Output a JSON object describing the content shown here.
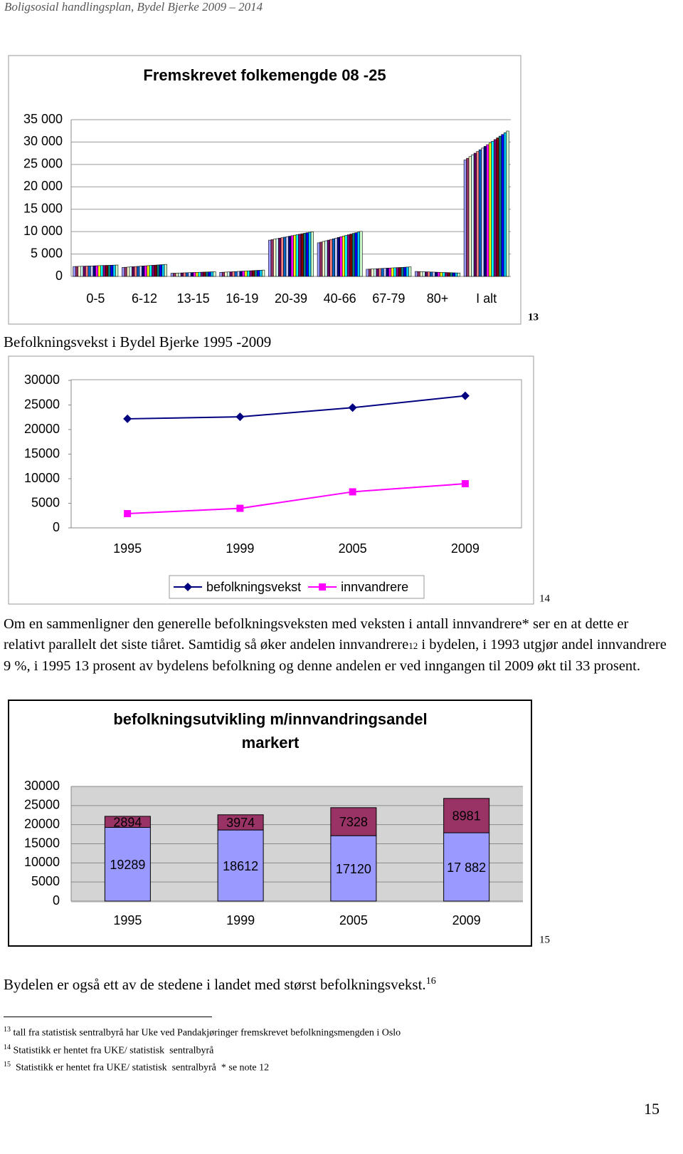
{
  "header": "Boligsosial handlingsplan, Bydel Bjerke 2009 – 2014",
  "chart_data": [
    {
      "type": "bar",
      "title": "Fremskrevet folkemengde 08 -25",
      "categories": [
        "0-5",
        "6-12",
        "13-15",
        "16-19",
        "20-39",
        "40-66",
        "67-79",
        "80+",
        "I alt"
      ],
      "series": [
        {
          "color": "#9999ff",
          "values": [
            2200,
            2000,
            700,
            900,
            8100,
            7500,
            1600,
            1100,
            26000
          ]
        },
        {
          "color": "#993366",
          "values": [
            2220,
            2040,
            720,
            930,
            8210,
            7650,
            1630,
            1080,
            26380
          ]
        },
        {
          "color": "#ffffcc",
          "values": [
            2240,
            2080,
            740,
            960,
            8320,
            7800,
            1660,
            1060,
            26760
          ]
        },
        {
          "color": "#ccffff",
          "values": [
            2260,
            2120,
            760,
            990,
            8430,
            7950,
            1690,
            1040,
            27140
          ]
        },
        {
          "color": "#660066",
          "values": [
            2280,
            2160,
            780,
            1020,
            8540,
            8100,
            1720,
            1020,
            27520
          ]
        },
        {
          "color": "#ff8080",
          "values": [
            2300,
            2200,
            800,
            1050,
            8650,
            8250,
            1750,
            1000,
            27900
          ]
        },
        {
          "color": "#0066cc",
          "values": [
            2320,
            2240,
            820,
            1080,
            8760,
            8400,
            1780,
            980,
            28280
          ]
        },
        {
          "color": "#ccccff",
          "values": [
            2340,
            2280,
            840,
            1110,
            8870,
            8550,
            1810,
            960,
            28660
          ]
        },
        {
          "color": "#000080",
          "values": [
            2360,
            2320,
            860,
            1140,
            8980,
            8700,
            1840,
            940,
            29040
          ]
        },
        {
          "color": "#ff00ff",
          "values": [
            2380,
            2360,
            880,
            1170,
            9090,
            8850,
            1870,
            920,
            29420
          ]
        },
        {
          "color": "#ffff00",
          "values": [
            2400,
            2400,
            900,
            1200,
            9200,
            9000,
            1900,
            900,
            29800
          ]
        },
        {
          "color": "#00ffff",
          "values": [
            2420,
            2440,
            920,
            1230,
            9310,
            9150,
            1930,
            880,
            30180
          ]
        },
        {
          "color": "#800080",
          "values": [
            2440,
            2480,
            940,
            1260,
            9420,
            9300,
            1960,
            860,
            30560
          ]
        },
        {
          "color": "#800000",
          "values": [
            2460,
            2520,
            960,
            1290,
            9530,
            9450,
            1990,
            840,
            30940
          ]
        },
        {
          "color": "#008080",
          "values": [
            2480,
            2560,
            980,
            1320,
            9640,
            9600,
            2020,
            820,
            31320
          ]
        },
        {
          "color": "#0000ff",
          "values": [
            2500,
            2600,
            1000,
            1350,
            9750,
            9750,
            2050,
            800,
            31700
          ]
        },
        {
          "color": "#00ccff",
          "values": [
            2520,
            2640,
            1020,
            1380,
            9860,
            9900,
            2080,
            780,
            32080
          ]
        },
        {
          "color": "#ccffcc",
          "values": [
            2540,
            2680,
            1040,
            1410,
            9970,
            10050,
            2110,
            760,
            32460
          ]
        }
      ],
      "ylim": [
        0,
        35000
      ],
      "yticks": [
        0,
        {
          "value": 5000,
          "label": "5 000"
        },
        {
          "value": 10000,
          "label": "10 000"
        },
        {
          "value": 15000,
          "label": "15 000"
        },
        {
          "value": 20000,
          "label": "20 000"
        },
        {
          "value": 25000,
          "label": "25 000"
        },
        {
          "value": 30000,
          "label": "30 000"
        },
        {
          "value": 35000,
          "label": "35 000"
        }
      ],
      "grid": true,
      "note": "13"
    },
    {
      "type": "line",
      "title": "Befolkningsvekst i Bydel Bjerke 1995 -2009",
      "categories": [
        "1995",
        "1999",
        "2005",
        "2009"
      ],
      "series": [
        {
          "name": "befolkningsvekst",
          "color": "#000080",
          "marker": "diamond",
          "values": [
            22183,
            22586,
            24448,
            26863
          ]
        },
        {
          "name": "innvandrere",
          "color": "#ff00ff",
          "marker": "square",
          "values": [
            2894,
            3974,
            7328,
            8981
          ]
        }
      ],
      "ylim": [
        0,
        30000
      ],
      "yticks": [
        0,
        5000,
        10000,
        15000,
        20000,
        25000,
        30000
      ],
      "grid": false,
      "legend": "bottom",
      "note": "14"
    },
    {
      "type": "bar",
      "stacked": true,
      "title": "befolkningsutvikling m/innvandringsandel markert",
      "categories": [
        "1995",
        "1999",
        "2005",
        "2009"
      ],
      "series": [
        {
          "color": "#9999ff",
          "values": [
            19289,
            18612,
            17120,
            17882
          ],
          "value_labels": [
            "19289",
            "18612",
            "17120",
            "17 882"
          ]
        },
        {
          "color": "#993366",
          "values": [
            2894,
            3974,
            7328,
            8981
          ]
        }
      ],
      "ylim": [
        0,
        30000
      ],
      "yticks": [
        0,
        5000,
        10000,
        15000,
        20000,
        25000,
        30000
      ],
      "grid": true,
      "note": "15"
    }
  ],
  "text": {
    "paragraph": {
      "before": "Om en sammenligner den generelle befolkningsveksten med veksten i antall innvandrere* ser en at dette er relativt parallelt det siste tiåret. Samtidig så øker andelen innvandrere",
      "ref": "12",
      "after": " i bydelen, i 1993 utgjør andel innvandrere 9 %, i 1995 13 prosent av bydelens befolkning og denne andelen er ved inngangen til 2009 økt til 33 prosent."
    },
    "closing": {
      "text": "Bydelen er også ett av de stedene i landet med størst befolkningsvekst.",
      "ref": "16"
    },
    "footnotes": [
      {
        "ref": "13",
        "text": " tall fra statistisk sentralbyrå har Uke ved Pandakjøringer fremskrevet befolkningsmengden i Oslo"
      },
      {
        "ref": "14",
        "text": " Statistikk er hentet fra UKE/ statistisk  sentralbyrå"
      },
      {
        "ref": "15",
        "text": "  Statistikk er hentet fra UKE/ statistisk  sentralbyrå  * se note 12"
      }
    ],
    "page_number": "15"
  }
}
